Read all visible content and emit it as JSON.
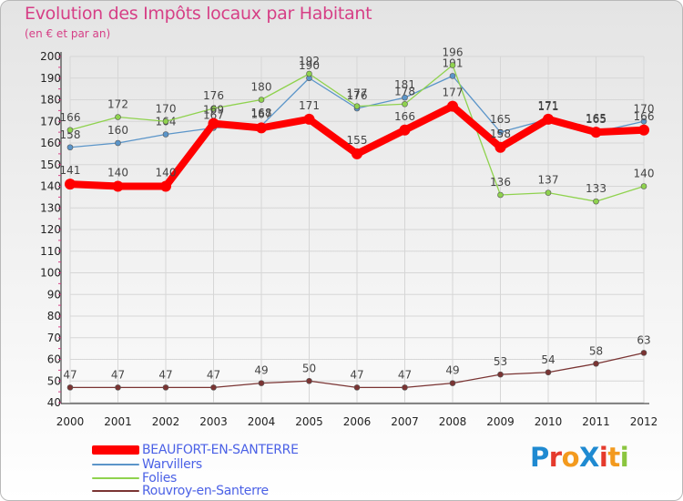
{
  "chart_data": {
    "type": "line",
    "title": "Evolution des Impôts locaux par Habitant",
    "subtitle": "(en € et par an)",
    "xlabel": "",
    "ylabel": "",
    "ylim": [
      40,
      200
    ],
    "yticks": [
      40,
      50,
      60,
      70,
      80,
      90,
      100,
      110,
      120,
      130,
      140,
      150,
      160,
      170,
      180,
      190,
      200
    ],
    "categories": [
      "2000",
      "2001",
      "2002",
      "2003",
      "2004",
      "2005",
      "2006",
      "2007",
      "2008",
      "2009",
      "2010",
      "2011",
      "2012"
    ],
    "series": [
      {
        "name": "Warvillers",
        "color": "#5b95c9",
        "values": [
          158,
          160,
          164,
          167,
          168,
          190,
          176,
          181,
          191,
          165,
          171,
          165,
          170
        ]
      },
      {
        "name": "Folies",
        "color": "#8fd24e",
        "values": [
          166,
          172,
          170,
          176,
          180,
          192,
          177,
          178,
          196,
          136,
          137,
          133,
          140
        ]
      },
      {
        "name": "Rouvroy-en-Santerre",
        "color": "#7a3433",
        "values": [
          47,
          47,
          47,
          47,
          49,
          50,
          47,
          47,
          49,
          53,
          54,
          58,
          63
        ]
      },
      {
        "name": "BEAUFORT-EN-SANTERRE",
        "color": "#ff0000",
        "values": [
          141,
          140,
          140,
          169,
          167,
          171,
          155,
          166,
          177,
          158,
          171,
          165,
          166
        ]
      }
    ]
  },
  "logo": {
    "text": "Proxiti",
    "letters": [
      {
        "ch": "P",
        "color": "#1f8ad1"
      },
      {
        "ch": "r",
        "color": "#e53a2c"
      },
      {
        "ch": "o",
        "color": "#f39a1e"
      },
      {
        "ch": "X",
        "color": "#1f8ad1"
      },
      {
        "ch": "i",
        "color": "#e53a2c"
      },
      {
        "ch": "t",
        "color": "#f39a1e"
      },
      {
        "ch": "i",
        "color": "#8bc53f"
      }
    ]
  }
}
